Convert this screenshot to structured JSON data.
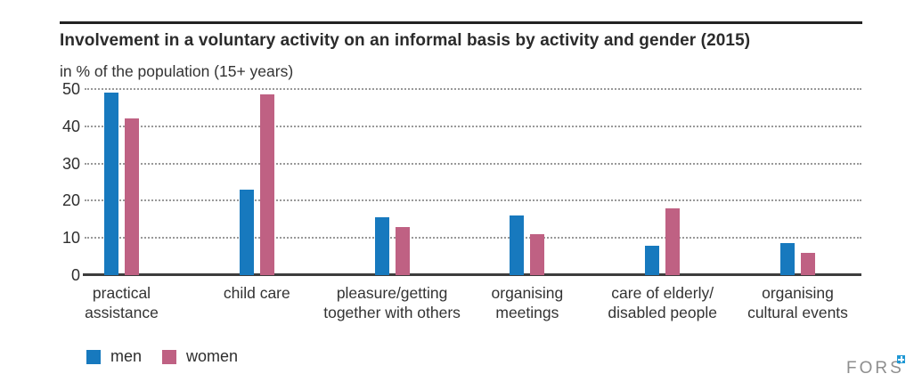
{
  "header": {
    "title": "Involvement in a voluntary activity on an informal basis by activity and gender (2015)",
    "subtitle": "in % of the population (15+ years)"
  },
  "chart_data": {
    "type": "bar",
    "categories": [
      "practical assistance",
      "child care",
      "pleasure/getting together with others",
      "organising meetings",
      "care of elderly/disabled people",
      "organising cultural events"
    ],
    "category_lines": [
      [
        "practical",
        "assistance"
      ],
      [
        "child care"
      ],
      [
        "pleasure/getting",
        "together with others"
      ],
      [
        "organising",
        "meetings"
      ],
      [
        "care of elderly/",
        "disabled people"
      ],
      [
        "organising",
        "cultural events"
      ]
    ],
    "series": [
      {
        "name": "men",
        "color": "#1779be",
        "values": [
          49,
          23,
          15.5,
          16,
          8,
          8.5
        ]
      },
      {
        "name": "women",
        "color": "#bf6183",
        "values": [
          42,
          48.5,
          13,
          11,
          18,
          6
        ]
      }
    ],
    "ylabel": "in % of the population (15+ years)",
    "ylim": [
      0,
      50
    ],
    "yticks": [
      0,
      10,
      20,
      30,
      40,
      50
    ],
    "grid": "horizontal-dotted",
    "legend_position": "bottom-left"
  },
  "legend": {
    "items": [
      {
        "label": "men",
        "color": "#1779be"
      },
      {
        "label": "women",
        "color": "#bf6183"
      }
    ]
  },
  "footer": {
    "logo_text": "FORS"
  },
  "colors": {
    "men": "#1779be",
    "women": "#bf6183",
    "grid": "#999999",
    "axis": "#3d3d3d",
    "logo_accent": "#2098d4"
  }
}
